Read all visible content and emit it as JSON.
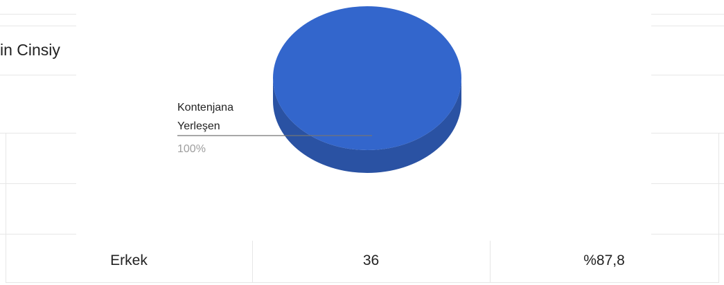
{
  "page": {
    "title": "in Cinsiy"
  },
  "table": {
    "rows": [
      {
        "label": "Erkek",
        "count": "36",
        "percent": "%87,8"
      }
    ]
  },
  "colors": {
    "slice": "#3366cc",
    "slice_side": "#2a52a3",
    "leader_line": "#757575",
    "grid": "#e6e6e6"
  },
  "chart_data": {
    "type": "pie",
    "is3d": true,
    "title": "",
    "slices": [
      {
        "label_line1": "Kontenjana",
        "label_line2": "Yerleşen",
        "value": 100,
        "percent_label": "100%"
      }
    ]
  }
}
